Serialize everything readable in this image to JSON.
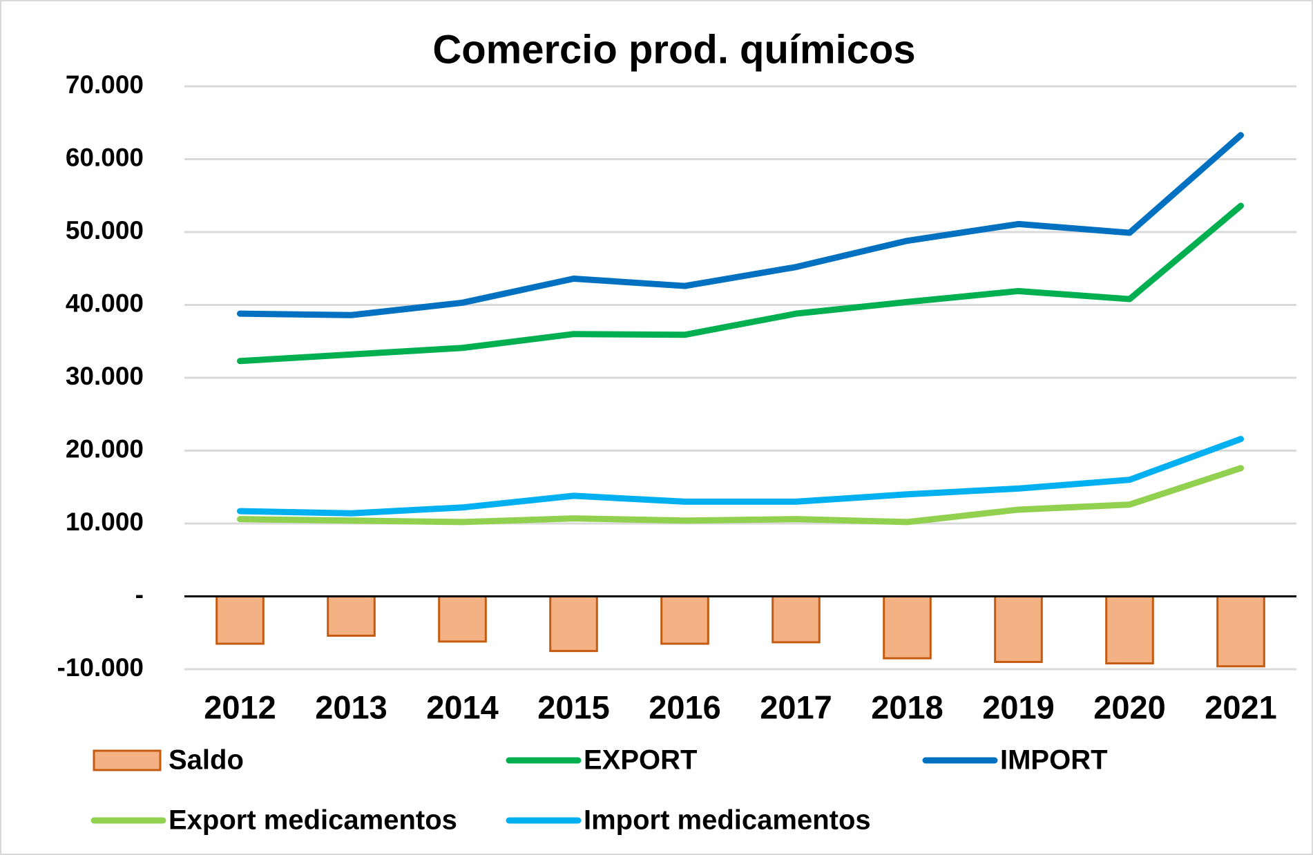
{
  "chart_data": {
    "type": "combo",
    "title": "Comercio prod. químicos",
    "categories": [
      "2012",
      "2013",
      "2014",
      "2015",
      "2016",
      "2017",
      "2018",
      "2019",
      "2020",
      "2021"
    ],
    "series": [
      {
        "name": "Saldo",
        "kind": "bar",
        "color": "#f4b183",
        "stroke": "#c55a11",
        "values": [
          -6500,
          -5400,
          -6200,
          -7500,
          -6500,
          -6300,
          -8500,
          -9000,
          -9200,
          -9600
        ]
      },
      {
        "name": "EXPORT",
        "kind": "line",
        "color": "#00b050",
        "values": [
          32300,
          33200,
          34100,
          36000,
          35900,
          38800,
          40400,
          41900,
          40800,
          53600
        ]
      },
      {
        "name": "IMPORT",
        "kind": "line",
        "color": "#0070c0",
        "values": [
          38800,
          38600,
          40300,
          43600,
          42600,
          45200,
          48800,
          51100,
          49900,
          63300
        ]
      },
      {
        "name": "Export medicamentos",
        "kind": "line",
        "color": "#92d050",
        "values": [
          10600,
          10400,
          10200,
          10700,
          10400,
          10600,
          10200,
          11900,
          12600,
          17600
        ]
      },
      {
        "name": "Import medicamentos",
        "kind": "line",
        "color": "#00b0f0",
        "values": [
          11700,
          11400,
          12200,
          13800,
          13000,
          13000,
          14000,
          14800,
          16000,
          21600
        ]
      }
    ],
    "ylim": [
      -10000,
      70000
    ],
    "yticks": [
      {
        "value": -10000,
        "label": "-10.000"
      },
      {
        "value": 0,
        "label": "-"
      },
      {
        "value": 10000,
        "label": "10.000"
      },
      {
        "value": 20000,
        "label": "20.000"
      },
      {
        "value": 30000,
        "label": "30.000"
      },
      {
        "value": 40000,
        "label": "40.000"
      },
      {
        "value": 50000,
        "label": "50.000"
      },
      {
        "value": 60000,
        "label": "60.000"
      },
      {
        "value": 70000,
        "label": "70.000"
      }
    ],
    "grid": true,
    "legend": "bottom"
  }
}
